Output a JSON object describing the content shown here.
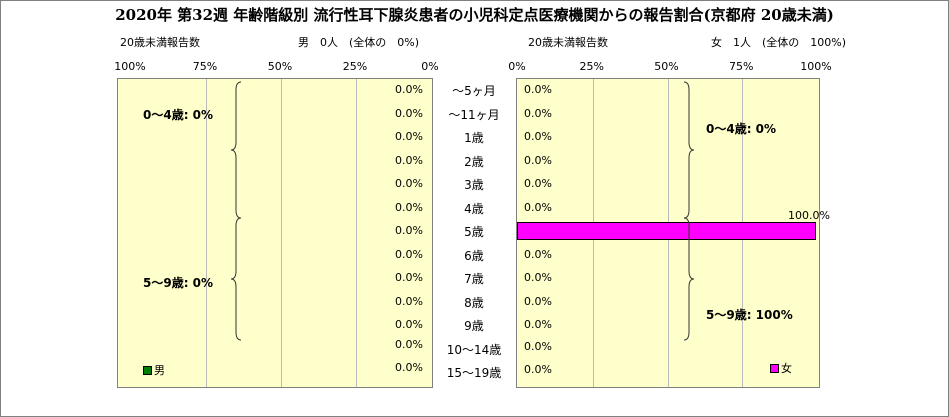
{
  "title": "2020年 第32週 年齢階級別 流行性耳下腺炎患者の小児科定点医療機関からの報告割合(京都府 20歳未満)",
  "male_panel": {
    "count_label": "20歳未満報告数",
    "summary": "男　0人　(全体の　0%)",
    "ticks": [
      "100%",
      "75%",
      "50%",
      "25%",
      "0%"
    ],
    "legend": "男",
    "group_labels": [
      "0～4歳: 0%",
      "5～9歳: 0%"
    ]
  },
  "female_panel": {
    "count_label": "20歳未満報告数",
    "summary": "女　1人　(全体の　100%)",
    "ticks": [
      "0%",
      "25%",
      "50%",
      "75%",
      "100%"
    ],
    "legend": "女",
    "group_labels": [
      "0～4歳: 0%",
      "5～9歳: 100%"
    ]
  },
  "chart_data": {
    "type": "bar",
    "orientation": "horizontal",
    "title": "2020年 第32週 年齢階級別 流行性耳下腺炎患者の小児科定点医療機関からの報告割合(京都府 20歳未満)",
    "categories": [
      "～5ヶ月",
      "～11ヶ月",
      "1歳",
      "2歳",
      "3歳",
      "4歳",
      "5歳",
      "6歳",
      "7歳",
      "8歳",
      "9歳",
      "10～14歳",
      "15～19歳"
    ],
    "series": [
      {
        "name": "男",
        "color": "#008000",
        "values": [
          0,
          0,
          0,
          0,
          0,
          0,
          0,
          0,
          0,
          0,
          0,
          0,
          0
        ],
        "labels": [
          "0.0%",
          "0.0%",
          "0.0%",
          "0.0%",
          "0.0%",
          "0.0%",
          "0.0%",
          "0.0%",
          "0.0%",
          "0.0%",
          "0.0%",
          "0.0%",
          "0.0%"
        ]
      },
      {
        "name": "女",
        "color": "#ff00ff",
        "values": [
          0,
          0,
          0,
          0,
          0,
          0,
          100,
          0,
          0,
          0,
          0,
          0,
          0
        ],
        "labels": [
          "0.0%",
          "0.0%",
          "0.0%",
          "0.0%",
          "0.0%",
          "0.0%",
          "100.0%",
          "0.0%",
          "0.0%",
          "0.0%",
          "0.0%",
          "0.0%",
          "0.0%"
        ]
      }
    ],
    "xlim": [
      0,
      100
    ],
    "unit": "%",
    "plot_background": "#ffffcc"
  }
}
